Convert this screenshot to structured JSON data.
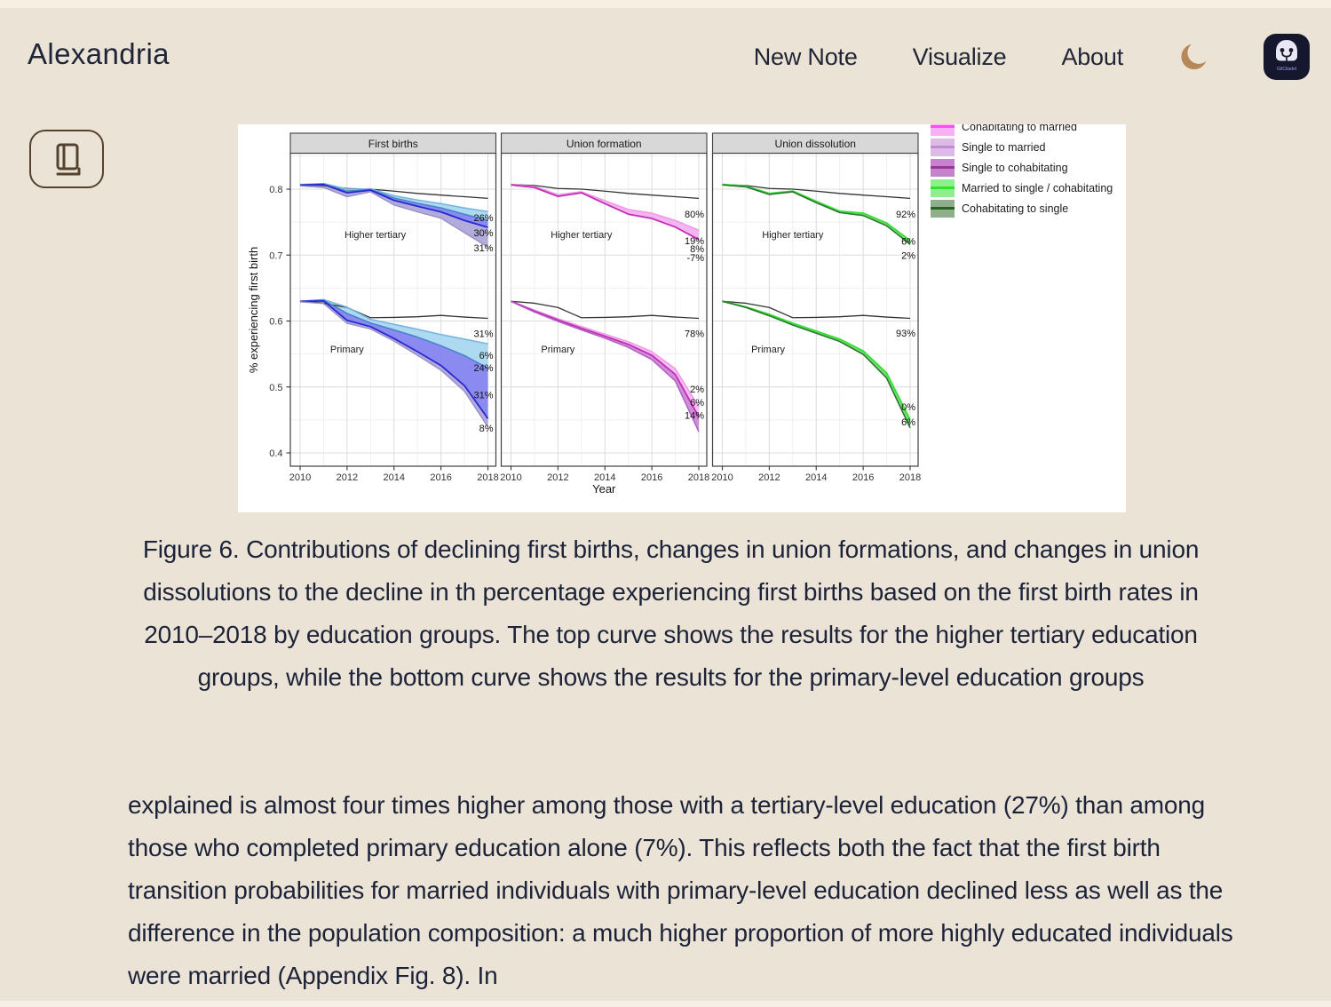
{
  "header": {
    "app_title": "Alexandria",
    "nav": [
      {
        "label": "New Note"
      },
      {
        "label": "Visualize"
      },
      {
        "label": "About"
      }
    ],
    "logo_text": "GitCitadel",
    "moon_color": "#b5885a"
  },
  "figure": {
    "legend": {
      "items": [
        {
          "label": "Cohabitating to married",
          "fill": "#F9AFF6",
          "line": "#F554EC",
          "clipped": true
        },
        {
          "label": "Single to married",
          "fill": "#DDBBE6",
          "line": "#C08CD4",
          "clipped": false
        },
        {
          "label": "Single to cohabitating",
          "fill": "#C583CB",
          "line": "#99349B",
          "clipped": false
        },
        {
          "label": "Married to single / cohabitating",
          "fill": "#90EE90",
          "line": "#2FE02F",
          "clipped": false
        },
        {
          "label": "Cohabitating to single",
          "fill": "#8FAE8C",
          "line": "#24631F",
          "clipped": false
        }
      ]
    },
    "chart_data": {
      "type": "line",
      "x": [
        2010,
        2011,
        2012,
        2013,
        2014,
        2015,
        2016,
        2017,
        2018
      ],
      "xlabel": "Year",
      "ylabel": "% experiencing first birth",
      "ylim": [
        0.38,
        0.855
      ],
      "yticks": [
        0.4,
        0.5,
        0.6,
        0.7,
        0.8
      ],
      "xticks": [
        2010,
        2012,
        2014,
        2016,
        2018
      ],
      "grid": "on",
      "legend_position": "top-right",
      "panels": [
        {
          "title": "First births",
          "groups": [
            {
              "label": "Higher tertiary",
              "label_at": {
                "year": 2013.2,
                "value": 0.726
              },
              "lines": [
                {
                  "name": "observed",
                  "color": "#333333",
                  "width": 1.3,
                  "values": [
                    0.807,
                    0.8055,
                    0.801,
                    0.8,
                    0.797,
                    0.7935,
                    0.791,
                    0.7885,
                    0.786
                  ]
                },
                {
                  "name": "counterfactual-1",
                  "color": "#79B5E3",
                  "width": 1.6,
                  "values": [
                    0.807,
                    0.8085,
                    0.8,
                    0.8005,
                    0.79,
                    0.7835,
                    0.778,
                    0.7715,
                    0.766
                  ]
                },
                {
                  "name": "counterfactual-2",
                  "color": "#4A84CC",
                  "width": 1.6,
                  "values": [
                    0.8065,
                    0.8075,
                    0.797,
                    0.7995,
                    0.7865,
                    0.7785,
                    0.7715,
                    0.762,
                    0.7525
                  ]
                },
                {
                  "name": "counterfactual-3",
                  "color": "#2828D2",
                  "width": 1.8,
                  "values": [
                    0.806,
                    0.807,
                    0.7945,
                    0.7985,
                    0.783,
                    0.774,
                    0.7655,
                    0.7525,
                    0.742
                  ]
                },
                {
                  "name": "counterfactual-4",
                  "color": "#998FC7",
                  "width": 1.4,
                  "values": [
                    0.805,
                    0.8025,
                    0.7885,
                    0.796,
                    0.776,
                    0.7655,
                    0.756,
                    0.734,
                    0.712
                  ]
                }
              ],
              "bands": [
                {
                  "top": 1,
                  "bottom": 2,
                  "fill": "#A9D7F0",
                  "opacity": 0.95
                },
                {
                  "top": 2,
                  "bottom": 3,
                  "fill": "#7D7DEF",
                  "opacity": 0.9
                },
                {
                  "top": 3,
                  "bottom": 4,
                  "fill": "#A59ED3",
                  "opacity": 0.85
                }
              ],
              "annotations": [
                {
                  "text": "26%",
                  "value": 0.757
                },
                {
                  "text": "30%",
                  "value": 0.734
                },
                {
                  "text": "31%",
                  "value": 0.711
                }
              ]
            },
            {
              "label": "Primary",
              "label_at": {
                "year": 2012.0,
                "value": 0.552
              },
              "lines": [
                {
                  "name": "observed",
                  "color": "#333333",
                  "width": 1.3,
                  "values": [
                    0.63,
                    0.627,
                    0.6205,
                    0.605,
                    0.6055,
                    0.6065,
                    0.6085,
                    0.606,
                    0.604
                  ]
                },
                {
                  "name": "counterfactual-1",
                  "color": "#79B5E3",
                  "width": 1.6,
                  "values": [
                    0.63,
                    0.6325,
                    0.621,
                    0.6025,
                    0.595,
                    0.5875,
                    0.5795,
                    0.5725,
                    0.5655
                  ]
                },
                {
                  "name": "counterfactual-2",
                  "color": "#4A84CC",
                  "width": 1.6,
                  "values": [
                    0.63,
                    0.6315,
                    0.6115,
                    0.597,
                    0.5865,
                    0.5755,
                    0.5625,
                    0.5475,
                    0.5285
                  ]
                },
                {
                  "name": "counterfactual-3",
                  "color": "#2828D2",
                  "width": 1.8,
                  "values": [
                    0.6295,
                    0.6305,
                    0.601,
                    0.5915,
                    0.5735,
                    0.5535,
                    0.5325,
                    0.502,
                    0.452
                  ]
                },
                {
                  "name": "counterfactual-4",
                  "color": "#998FC7",
                  "width": 1.4,
                  "values": [
                    0.629,
                    0.6265,
                    0.5965,
                    0.588,
                    0.5695,
                    0.548,
                    0.5255,
                    0.4935,
                    0.4395
                  ]
                }
              ],
              "bands": [
                {
                  "top": 1,
                  "bottom": 2,
                  "fill": "#A9D7F0",
                  "opacity": 0.95
                },
                {
                  "top": 2,
                  "bottom": 3,
                  "fill": "#7D7DEF",
                  "opacity": 0.9
                },
                {
                  "top": 3,
                  "bottom": 4,
                  "fill": "#A59ED3",
                  "opacity": 0.85
                }
              ],
              "annotations": [
                {
                  "text": "31%",
                  "value": 0.581
                },
                {
                  "text": "6%",
                  "value": 0.548
                },
                {
                  "text": "24%",
                  "value": 0.529
                },
                {
                  "text": "31%",
                  "value": 0.488
                },
                {
                  "text": "8%",
                  "value": 0.438
                }
              ]
            }
          ]
        },
        {
          "title": "Union formation",
          "groups": [
            {
              "label": "Higher tertiary",
              "label_at": {
                "year": 2013.0,
                "value": 0.726
              },
              "lines": [
                {
                  "name": "observed",
                  "color": "#333333",
                  "width": 1.3,
                  "values": [
                    0.807,
                    0.8055,
                    0.801,
                    0.8,
                    0.797,
                    0.7935,
                    0.791,
                    0.7885,
                    0.786
                  ]
                },
                {
                  "name": "counterfactual-1",
                  "color": "#F09AE8",
                  "width": 1.6,
                  "values": [
                    0.807,
                    0.804,
                    0.7915,
                    0.796,
                    0.7825,
                    0.769,
                    0.7635,
                    0.7525,
                    0.7375
                  ]
                },
                {
                  "name": "counterfactual-2",
                  "color": "#C02EB6",
                  "width": 1.8,
                  "values": [
                    0.8065,
                    0.8025,
                    0.789,
                    0.7945,
                    0.778,
                    0.762,
                    0.7555,
                    0.7425,
                    0.7235
                  ]
                }
              ],
              "bands": [
                {
                  "top": 1,
                  "bottom": 2,
                  "fill": "#F2AEEE",
                  "opacity": 0.9
                }
              ],
              "annotations": [
                {
                  "text": "80%",
                  "value": 0.762
                },
                {
                  "text": "19%",
                  "value": 0.722
                },
                {
                  "text": "8%",
                  "value": 0.71
                },
                {
                  "text": "-7%",
                  "value": 0.696
                }
              ]
            },
            {
              "label": "Primary",
              "label_at": {
                "year": 2012.0,
                "value": 0.552
              },
              "lines": [
                {
                  "name": "observed",
                  "color": "#333333",
                  "width": 1.3,
                  "values": [
                    0.63,
                    0.627,
                    0.6205,
                    0.605,
                    0.6055,
                    0.6065,
                    0.6085,
                    0.606,
                    0.604
                  ]
                },
                {
                  "name": "counterfactual-1",
                  "color": "#F09AE8",
                  "width": 1.6,
                  "values": [
                    0.63,
                    0.6165,
                    0.6035,
                    0.5915,
                    0.58,
                    0.5685,
                    0.5535,
                    0.5275,
                    0.47
                  ]
                },
                {
                  "name": "counterfactual-2",
                  "color": "#C02EB6",
                  "width": 1.8,
                  "values": [
                    0.63,
                    0.615,
                    0.6015,
                    0.589,
                    0.577,
                    0.5645,
                    0.548,
                    0.519,
                    0.4545
                  ]
                },
                {
                  "name": "counterfactual-3",
                  "color": "#AE62C2",
                  "width": 1.5,
                  "values": [
                    0.6295,
                    0.6135,
                    0.5995,
                    0.5865,
                    0.574,
                    0.56,
                    0.5415,
                    0.509,
                    0.432
                  ]
                }
              ],
              "bands": [
                {
                  "top": 1,
                  "bottom": 2,
                  "fill": "#F5BCF2",
                  "opacity": 0.95
                },
                {
                  "top": 2,
                  "bottom": 3,
                  "fill": "#CE7FD6",
                  "opacity": 0.9
                }
              ],
              "annotations": [
                {
                  "text": "78%",
                  "value": 0.581
                },
                {
                  "text": "2%",
                  "value": 0.497
                },
                {
                  "text": "6%",
                  "value": 0.477
                },
                {
                  "text": "14%",
                  "value": 0.457
                }
              ]
            }
          ]
        },
        {
          "title": "Union dissolution",
          "groups": [
            {
              "label": "Higher tertiary",
              "label_at": {
                "year": 2013.0,
                "value": 0.726
              },
              "lines": [
                {
                  "name": "observed",
                  "color": "#333333",
                  "width": 1.3,
                  "values": [
                    0.807,
                    0.8055,
                    0.801,
                    0.8,
                    0.797,
                    0.7935,
                    0.791,
                    0.7885,
                    0.786
                  ]
                },
                {
                  "name": "counterfactual-1",
                  "color": "#38E038",
                  "width": 2.0,
                  "values": [
                    0.807,
                    0.8045,
                    0.7935,
                    0.797,
                    0.7815,
                    0.7665,
                    0.7635,
                    0.7485,
                    0.722
                  ]
                },
                {
                  "name": "counterfactual-2",
                  "color": "#2D7530",
                  "width": 1.6,
                  "values": [
                    0.8065,
                    0.8035,
                    0.792,
                    0.796,
                    0.7795,
                    0.7645,
                    0.76,
                    0.7445,
                    0.7165
                  ]
                }
              ],
              "bands": [
                {
                  "top": 1,
                  "bottom": 2,
                  "fill": "#71D971",
                  "opacity": 0.9
                }
              ],
              "annotations": [
                {
                  "text": "92%",
                  "value": 0.762
                },
                {
                  "text": "6%",
                  "value": 0.721
                },
                {
                  "text": "2%",
                  "value": 0.7
                }
              ]
            },
            {
              "label": "Primary",
              "label_at": {
                "year": 2011.95,
                "value": 0.552
              },
              "lines": [
                {
                  "name": "observed",
                  "color": "#333333",
                  "width": 1.3,
                  "values": [
                    0.63,
                    0.627,
                    0.6205,
                    0.605,
                    0.6055,
                    0.6065,
                    0.6085,
                    0.606,
                    0.604
                  ]
                },
                {
                  "name": "counterfactual-1",
                  "color": "#38E038",
                  "width": 2.0,
                  "values": [
                    0.63,
                    0.6215,
                    0.61,
                    0.5965,
                    0.5845,
                    0.5725,
                    0.5545,
                    0.521,
                    0.45
                  ]
                },
                {
                  "name": "counterfactual-2",
                  "color": "#2D7530",
                  "width": 1.6,
                  "values": [
                    0.63,
                    0.6205,
                    0.608,
                    0.594,
                    0.5815,
                    0.569,
                    0.5495,
                    0.5135,
                    0.438
                  ]
                }
              ],
              "bands": [
                {
                  "top": 1,
                  "bottom": 2,
                  "fill": "#71D971",
                  "opacity": 0.9
                }
              ],
              "annotations": [
                {
                  "text": "93%",
                  "value": 0.582
                },
                {
                  "text": "0%",
                  "value": 0.47
                },
                {
                  "text": "6%",
                  "value": 0.447
                }
              ]
            }
          ]
        }
      ]
    }
  },
  "caption": {
    "text": "Figure 6. Contributions of declining first births, changes in union formations, and changes in union dissolutions to the decline in th percentage experiencing first births based on the first birth rates in 2010–2018 by education groups. The top curve shows the results for the higher tertiary education groups, while the bottom curve shows the results for the primary-level education groups"
  },
  "article": {
    "paragraph": "explained is almost four times higher among those with a tertiary-level education (27%) than among those who completed primary education alone (7%). This reflects both the fact that the first birth transition probabilities for married individuals with primary-level education declined less as well as the difference in the population composition: a much higher proportion of more highly educated individuals were married (Appendix Fig. 8). In"
  }
}
